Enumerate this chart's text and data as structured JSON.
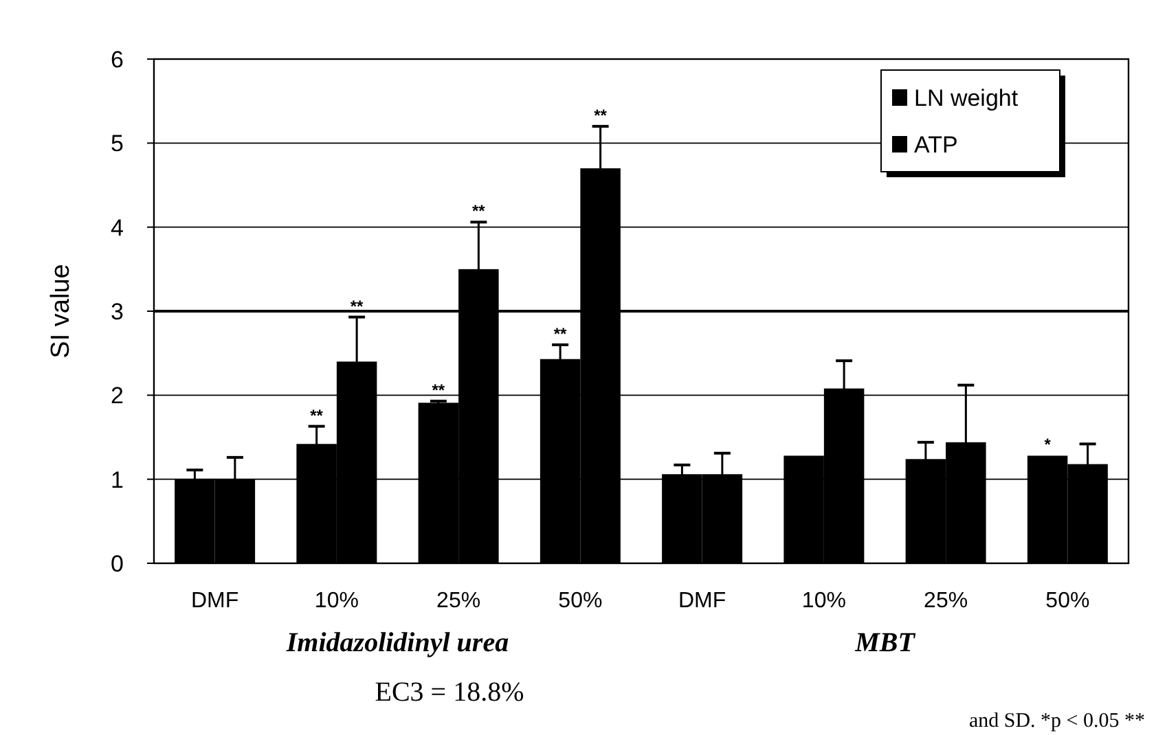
{
  "chart_data": {
    "type": "bar",
    "ylabel": "SI value",
    "categories": [
      "DMF",
      "10%",
      "25%",
      "50%",
      "DMF",
      "10%",
      "25%",
      "50%"
    ],
    "series": [
      {
        "name": "LN weight",
        "color": "#000000",
        "values": [
          1.0,
          1.42,
          1.91,
          2.43,
          1.06,
          1.28,
          1.24,
          1.28
        ],
        "errors": [
          0.11,
          0.21,
          0.02,
          0.17,
          0.11,
          null,
          0.2,
          null
        ],
        "value_labels": [
          null,
          "**",
          "**",
          "**",
          null,
          null,
          null,
          "*"
        ]
      },
      {
        "name": "ATP",
        "color": "#000000",
        "values": [
          1.0,
          2.4,
          3.5,
          4.7,
          1.06,
          2.08,
          1.44,
          1.18
        ],
        "errors": [
          0.26,
          0.53,
          0.56,
          0.5,
          0.25,
          0.33,
          0.68,
          0.24
        ],
        "value_labels": [
          null,
          "**",
          "**",
          "**",
          null,
          null,
          null,
          null
        ]
      }
    ],
    "ylim": [
      0,
      6
    ],
    "yticks": [
      0,
      1,
      2,
      3,
      4,
      5,
      6
    ],
    "grid": "y",
    "legend": "top right",
    "ref_lines": [
      {
        "axis": "y",
        "value": 3,
        "color": "#000000"
      }
    ],
    "annotations": [
      "Imidazolidinyl urea",
      "MBT",
      "EC3 = 18.8%",
      "and SD. *p < 0.05 **"
    ]
  }
}
